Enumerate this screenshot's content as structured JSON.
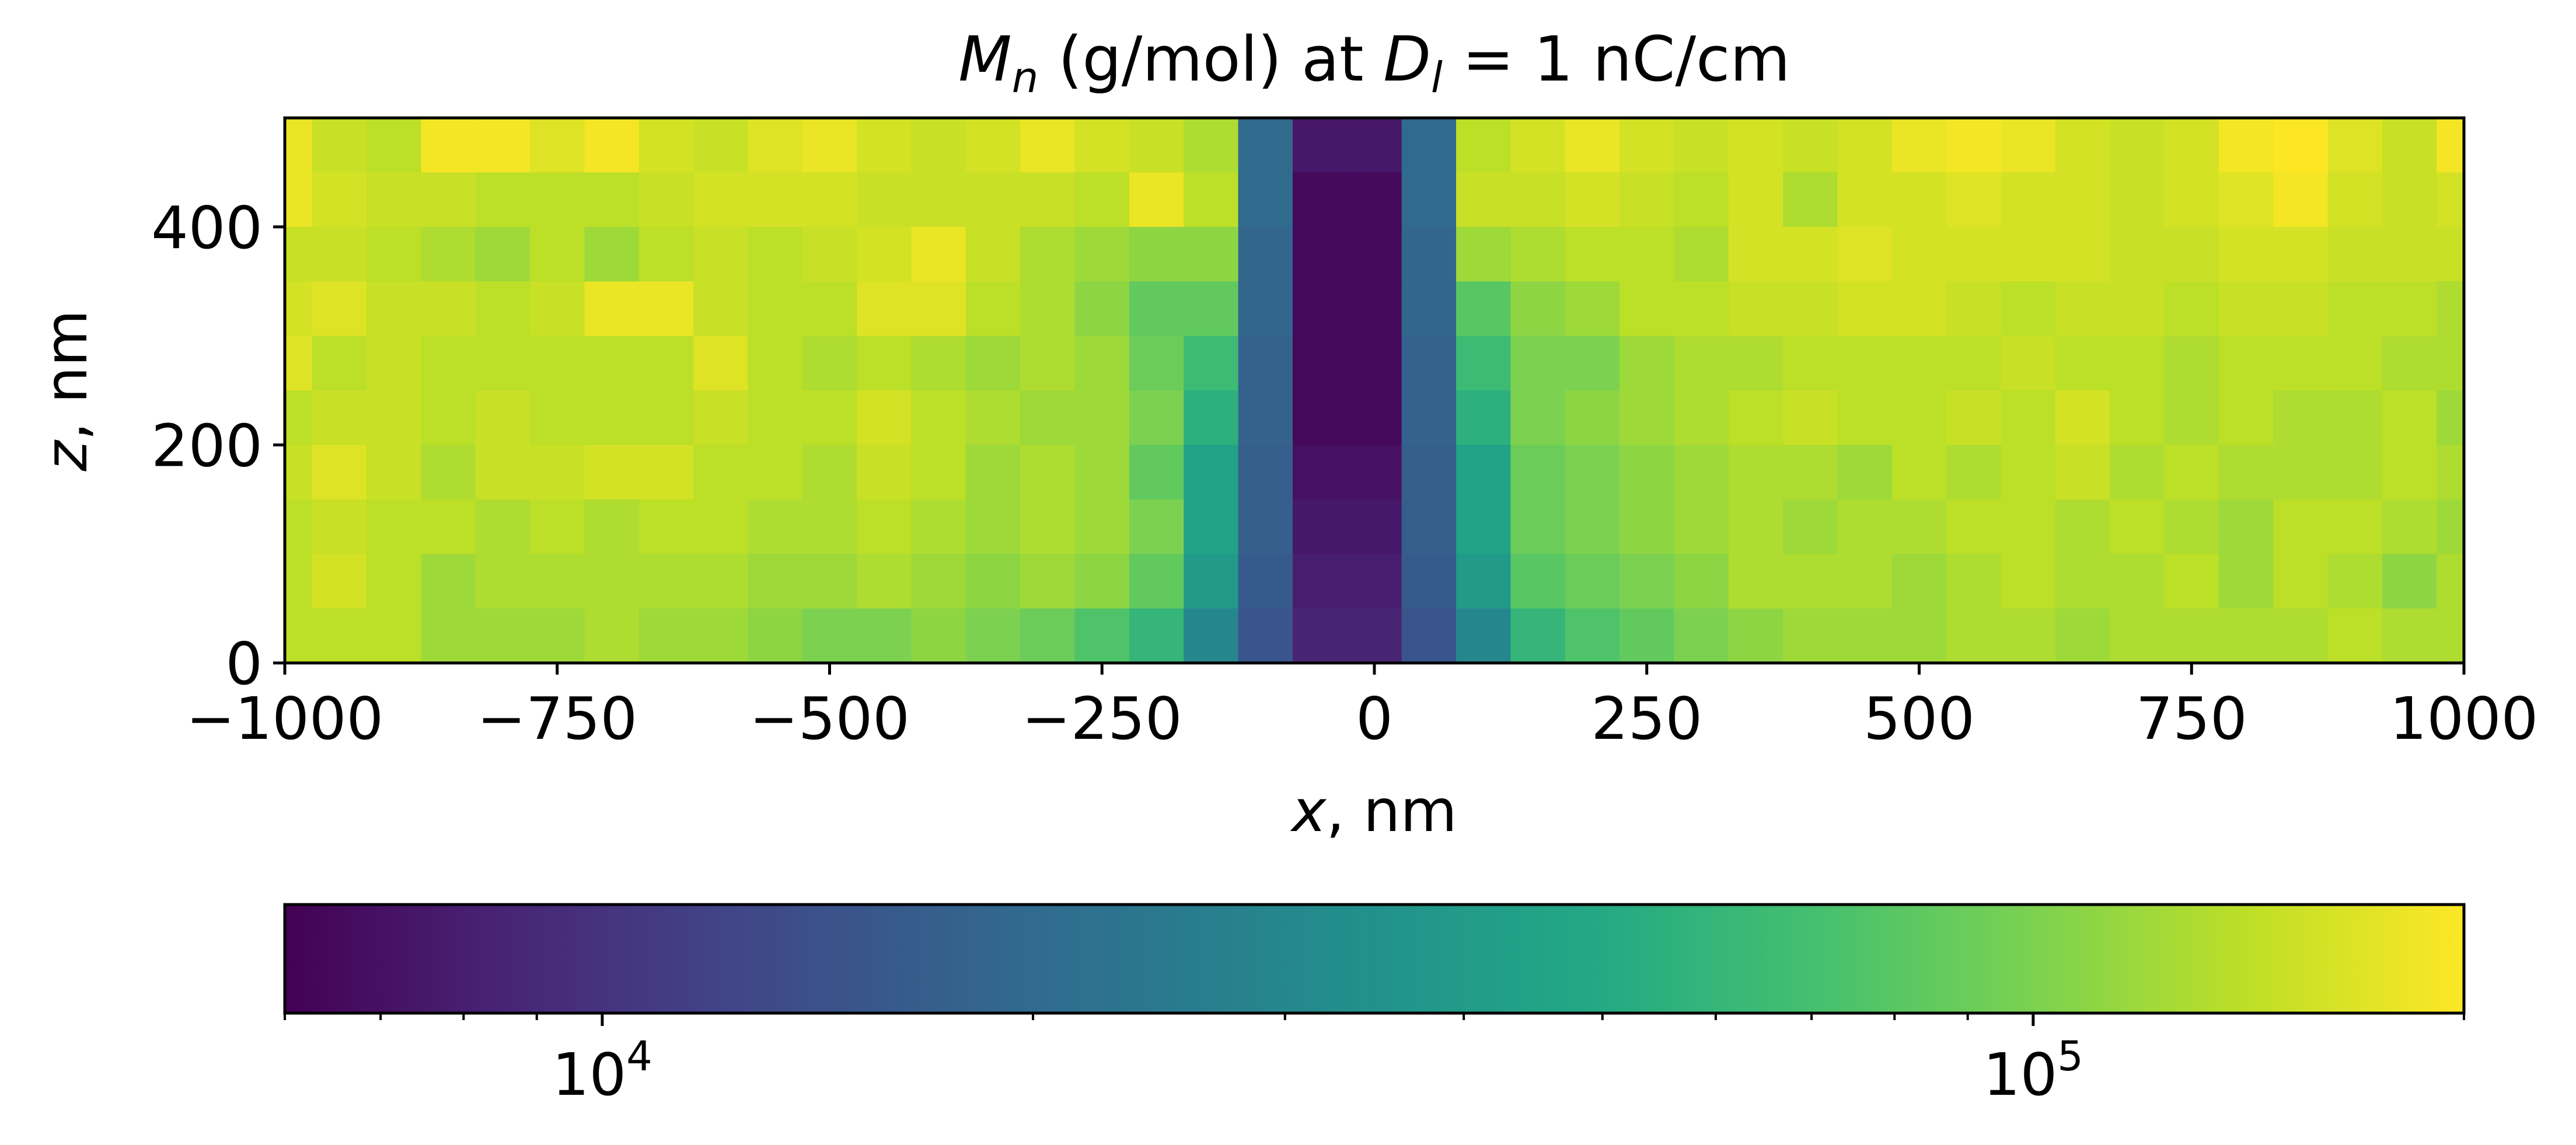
{
  "chart_data": {
    "type": "heatmap",
    "title": {
      "var": "M",
      "var_sub": "n",
      "mid": " (g/mol) at ",
      "cond_var": "D",
      "cond_sub": "l",
      "cond_rest": " = 1 nC/cm"
    },
    "xlabel": {
      "var": "x",
      "unit": ", nm"
    },
    "ylabel": {
      "var": "z",
      "unit": ", nm"
    },
    "xlim": [
      -1000,
      1000
    ],
    "ylim": [
      0,
      500
    ],
    "x_ticks": [
      -1000,
      -750,
      -500,
      -250,
      0,
      250,
      500,
      750,
      1000
    ],
    "x_tick_labels": [
      "−1000",
      "−750",
      "−500",
      "−250",
      "0",
      "250",
      "500",
      "750",
      "1000"
    ],
    "y_ticks": [
      0,
      200,
      400
    ],
    "y_tick_labels": [
      "0",
      "200",
      "400"
    ],
    "cell_width_nm": 50,
    "cell_height_nm": 50,
    "colorbar": {
      "scale": "log",
      "colormap": "viridis",
      "min": 6000,
      "max": 200000,
      "orientation": "horizontal",
      "major_ticks": [
        10000,
        100000
      ],
      "major_tick_labels": [
        {
          "base": "10",
          "exp": "4"
        },
        {
          "base": "10",
          "exp": "5"
        }
      ],
      "minor_ticks": [
        6000,
        7000,
        8000,
        9000,
        20000,
        30000,
        40000,
        50000,
        60000,
        70000,
        80000,
        90000,
        200000
      ]
    },
    "rows_top_to_bottom": [
      [
        180000.0,
        150000.0,
        140000.0,
        190000.0,
        190000.0,
        170000.0,
        190000.0,
        160000.0,
        150000.0,
        170000.0,
        180000.0,
        160000.0,
        150000.0,
        160000.0,
        180000.0,
        160000.0,
        150000.0,
        130000.0,
        20000.0,
        7500.0,
        7500.0,
        20000.0,
        140000.0,
        160000.0,
        180000.0,
        160000.0,
        150000.0,
        160000.0,
        150000.0,
        160000.0,
        180000.0,
        190000.0,
        180000.0,
        160000.0,
        150000.0,
        160000.0,
        190000.0,
        200000.0,
        170000.0,
        150000.0,
        190000.0,
        150000.0,
        140000.0
      ],
      [
        180000.0,
        160000.0,
        150000.0,
        150000.0,
        140000.0,
        140000.0,
        140000.0,
        150000.0,
        160000.0,
        160000.0,
        160000.0,
        150000.0,
        150000.0,
        150000.0,
        150000.0,
        140000.0,
        180000.0,
        140000.0,
        20000.0,
        6500.0,
        6500.0,
        20000.0,
        150000.0,
        150000.0,
        160000.0,
        150000.0,
        140000.0,
        160000.0,
        130000.0,
        160000.0,
        160000.0,
        170000.0,
        160000.0,
        160000.0,
        150000.0,
        160000.0,
        170000.0,
        190000.0,
        160000.0,
        150000.0,
        160000.0,
        150000.0,
        160000.0
      ],
      [
        150000.0,
        150000.0,
        140000.0,
        130000.0,
        120000.0,
        140000.0,
        120000.0,
        140000.0,
        150000.0,
        140000.0,
        150000.0,
        160000.0,
        180000.0,
        150000.0,
        130000.0,
        120000.0,
        110000.0,
        110000.0,
        19000.0,
        6500.0,
        6500.0,
        19000.0,
        120000.0,
        130000.0,
        140000.0,
        140000.0,
        130000.0,
        160000.0,
        160000.0,
        170000.0,
        160000.0,
        160000.0,
        160000.0,
        160000.0,
        150000.0,
        150000.0,
        160000.0,
        160000.0,
        150000.0,
        150000.0,
        150000.0,
        140000.0,
        150000.0
      ],
      [
        160000.0,
        170000.0,
        150000.0,
        150000.0,
        140000.0,
        150000.0,
        180000.0,
        180000.0,
        150000.0,
        140000.0,
        140000.0,
        170000.0,
        170000.0,
        140000.0,
        130000.0,
        110000.0,
        85000.0,
        85000.0,
        19000.0,
        6500.0,
        6500.0,
        19000.0,
        80000.0,
        110000.0,
        120000.0,
        140000.0,
        140000.0,
        150000.0,
        150000.0,
        160000.0,
        160000.0,
        150000.0,
        140000.0,
        150000.0,
        150000.0,
        140000.0,
        150000.0,
        150000.0,
        140000.0,
        140000.0,
        130000.0,
        140000.0,
        150000.0
      ],
      [
        170000.0,
        140000.0,
        150000.0,
        140000.0,
        140000.0,
        140000.0,
        140000.0,
        140000.0,
        170000.0,
        140000.0,
        130000.0,
        140000.0,
        130000.0,
        120000.0,
        130000.0,
        120000.0,
        90000.0,
        65000.0,
        18000.0,
        6500.0,
        6500.0,
        18000.0,
        65000.0,
        100000.0,
        100000.0,
        120000.0,
        130000.0,
        130000.0,
        140000.0,
        140000.0,
        140000.0,
        140000.0,
        150000.0,
        140000.0,
        140000.0,
        130000.0,
        140000.0,
        140000.0,
        140000.0,
        130000.0,
        130000.0,
        140000.0,
        130000.0
      ],
      [
        140000.0,
        150000.0,
        150000.0,
        140000.0,
        150000.0,
        140000.0,
        140000.0,
        140000.0,
        150000.0,
        140000.0,
        140000.0,
        160000.0,
        140000.0,
        130000.0,
        120000.0,
        120000.0,
        100000.0,
        55000.0,
        18000.0,
        6500.0,
        6500.0,
        18000.0,
        55000.0,
        100000.0,
        110000.0,
        120000.0,
        130000.0,
        140000.0,
        150000.0,
        140000.0,
        140000.0,
        150000.0,
        140000.0,
        160000.0,
        140000.0,
        130000.0,
        140000.0,
        130000.0,
        130000.0,
        140000.0,
        120000.0,
        130000.0,
        130000.0
      ],
      [
        150000.0,
        170000.0,
        150000.0,
        130000.0,
        150000.0,
        150000.0,
        160000.0,
        160000.0,
        140000.0,
        140000.0,
        130000.0,
        150000.0,
        140000.0,
        120000.0,
        130000.0,
        120000.0,
        85000.0,
        45000.0,
        17000.0,
        7000.0,
        7000.0,
        17000.0,
        45000.0,
        90000.0,
        100000.0,
        110000.0,
        120000.0,
        130000.0,
        130000.0,
        120000.0,
        140000.0,
        130000.0,
        140000.0,
        150000.0,
        130000.0,
        140000.0,
        130000.0,
        130000.0,
        130000.0,
        140000.0,
        130000.0,
        140000.0,
        130000.0
      ],
      [
        140000.0,
        150000.0,
        140000.0,
        140000.0,
        130000.0,
        140000.0,
        130000.0,
        140000.0,
        140000.0,
        130000.0,
        130000.0,
        140000.0,
        130000.0,
        120000.0,
        130000.0,
        120000.0,
        100000.0,
        45000.0,
        17000.0,
        7500.0,
        7500.0,
        17000.0,
        45000.0,
        90000.0,
        100000.0,
        110000.0,
        120000.0,
        130000.0,
        120000.0,
        130000.0,
        130000.0,
        140000.0,
        140000.0,
        130000.0,
        140000.0,
        130000.0,
        120000.0,
        140000.0,
        140000.0,
        130000.0,
        120000.0,
        130000.0,
        120000.0
      ],
      [
        140000.0,
        160000.0,
        140000.0,
        120000.0,
        130000.0,
        130000.0,
        130000.0,
        130000.0,
        130000.0,
        120000.0,
        120000.0,
        130000.0,
        120000.0,
        110000.0,
        120000.0,
        110000.0,
        85000.0,
        40000.0,
        16000.0,
        8000.0,
        8000.0,
        16000.0,
        40000.0,
        80000.0,
        90000.0,
        100000.0,
        110000.0,
        130000.0,
        130000.0,
        130000.0,
        120000.0,
        130000.0,
        140000.0,
        130000.0,
        130000.0,
        140000.0,
        120000.0,
        140000.0,
        130000.0,
        110000.0,
        130000.0,
        120000.0,
        120000.0
      ],
      [
        140000.0,
        140000.0,
        140000.0,
        120000.0,
        120000.0,
        120000.0,
        130000.0,
        120000.0,
        120000.0,
        110000.0,
        100000.0,
        100000.0,
        110000.0,
        100000.0,
        90000.0,
        75000.0,
        60000.0,
        30000.0,
        15000.0,
        8500.0,
        8500.0,
        15000.0,
        30000.0,
        60000.0,
        75000.0,
        85000.0,
        100000.0,
        110000.0,
        120000.0,
        120000.0,
        120000.0,
        130000.0,
        130000.0,
        120000.0,
        130000.0,
        130000.0,
        130000.0,
        130000.0,
        140000.0,
        130000.0,
        130000.0,
        130000.0,
        130000.0
      ]
    ]
  }
}
